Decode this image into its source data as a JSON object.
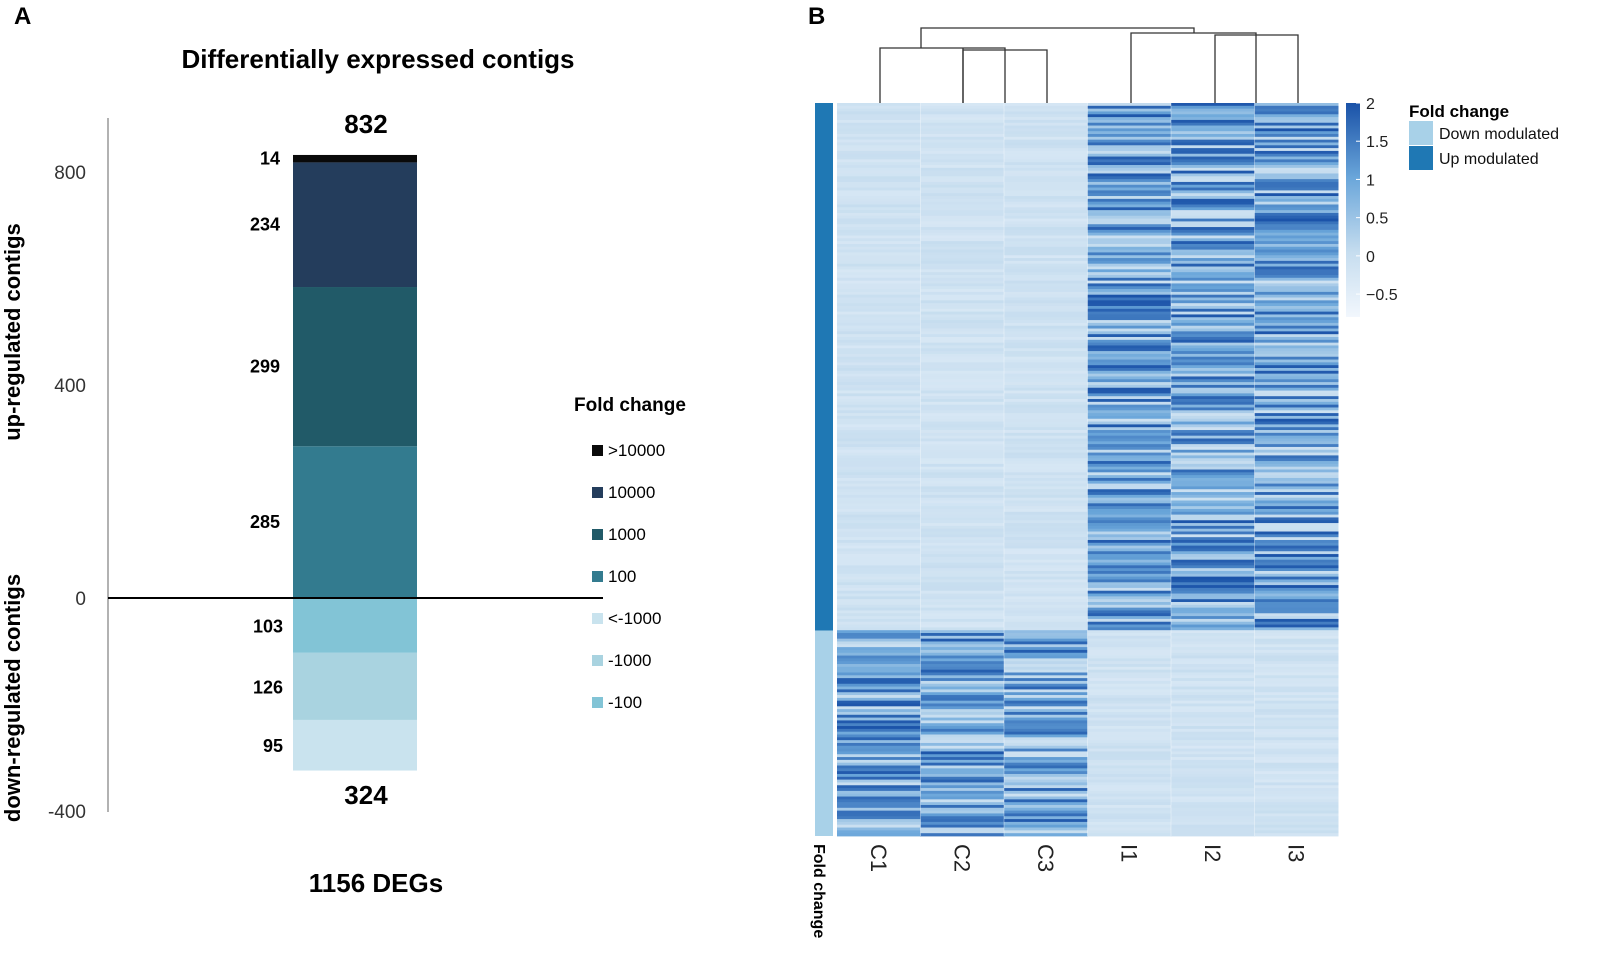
{
  "chart_data": [
    {
      "type": "bar",
      "panel_label": "A",
      "title": "Differentially expressed contigs",
      "ylabel_up": "up-regulated contigs",
      "ylabel_down": "down-regulated contigs",
      "yticks": [
        800,
        400,
        0,
        -400
      ],
      "ytick_labels": [
        "800",
        "400",
        "0",
        "-400"
      ],
      "ylim": [
        -400,
        900
      ],
      "up_segments": [
        {
          "label": "100",
          "value": 285,
          "color": "#337b8f"
        },
        {
          "label": "1000",
          "value": 299,
          "color": "#215a68"
        },
        {
          "label": "10000",
          "value": 234,
          "color": "#243d5c"
        },
        {
          "label": ">10000",
          "value": 14,
          "color": "#0a0a0a"
        }
      ],
      "down_segments": [
        {
          "label": "-100",
          "value": 103,
          "color": "#82c4d6"
        },
        {
          "label": "-1000",
          "value": 126,
          "color": "#a9d3e0"
        },
        {
          "label": "<-1000",
          "value": 95,
          "color": "#c9e3ee"
        }
      ],
      "total_up": "832",
      "total_down": "324",
      "xlabel": "1156 DEGs",
      "legend_title": "Fold change",
      "legend": [
        {
          "label": ">10000",
          "color": "#0a0a0a"
        },
        {
          "label": "10000",
          "color": "#243d5c"
        },
        {
          "label": "1000",
          "color": "#215a68"
        },
        {
          "label": "100",
          "color": "#337b8f"
        },
        {
          "label": "<-1000",
          "color": "#c9e3ee"
        },
        {
          "label": "-1000",
          "color": "#a9d3e0"
        },
        {
          "label": "-100",
          "color": "#82c4d6"
        }
      ],
      "up_color": "#2f4d78",
      "down_color": "#5b8fc9"
    },
    {
      "type": "heatmap",
      "panel_label": "B",
      "columns": [
        "C1",
        "C2",
        "C3",
        "I1",
        "I2",
        "I3"
      ],
      "row_groups": [
        {
          "name": "Up modulated",
          "rows": 832
        },
        {
          "name": "Down modulated",
          "rows": 324
        }
      ],
      "annotation_label": "Fold change",
      "colorbar_ticks": [
        2,
        1.5,
        1,
        0.5,
        0,
        -0.5
      ],
      "colorbar_labels": [
        "2",
        "1.5",
        "1",
        "0.5",
        "0",
        "−0.5"
      ],
      "colorbar_range": [
        -0.8,
        2
      ],
      "legend_title": "Fold change",
      "legend": [
        {
          "label": "Down modulated",
          "color": "#a8d1e8"
        },
        {
          "label": "Up modulated",
          "color": "#1f78b4"
        }
      ],
      "low_color": "#f2f7fd",
      "high_color": "#1a52a8"
    }
  ]
}
